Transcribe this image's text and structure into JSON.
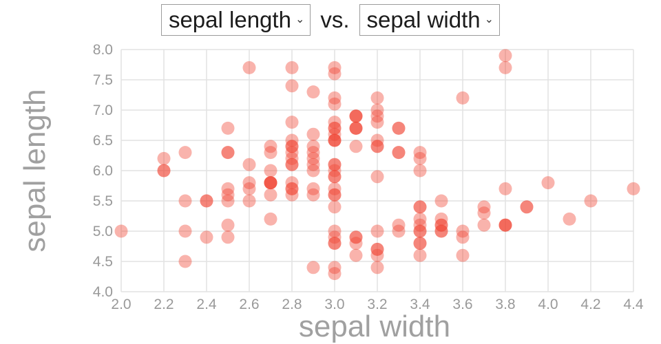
{
  "header": {
    "y_select": "sepal length",
    "x_select": "sepal width",
    "vs_label": "vs.",
    "chevron": "⌄"
  },
  "chart_data": {
    "type": "scatter",
    "title": "sepal length vs. sepal width",
    "xlabel": "sepal width",
    "ylabel": "sepal length",
    "xlim": [
      2.0,
      4.4
    ],
    "ylim": [
      4.0,
      8.0
    ],
    "x_ticks": [
      "2.0",
      "2.2",
      "2.4",
      "2.6",
      "2.8",
      "3.0",
      "3.2",
      "3.4",
      "3.6",
      "3.8",
      "4.0",
      "4.2",
      "4.4"
    ],
    "y_ticks": [
      "4.0",
      "4.5",
      "5.0",
      "5.5",
      "6.0",
      "6.5",
      "7.0",
      "7.5",
      "8.0"
    ],
    "grid": true,
    "legend": "none",
    "grid_color": "#e2e2e2",
    "tick_color": "#999999",
    "tick_font_size": 21,
    "marker_color": "#f0402f",
    "marker_opacity": 0.4,
    "marker_radius": 9.5,
    "points": [
      [
        3.5,
        5.1
      ],
      [
        3.0,
        4.9
      ],
      [
        3.2,
        4.7
      ],
      [
        3.1,
        4.6
      ],
      [
        3.6,
        5.0
      ],
      [
        3.9,
        5.4
      ],
      [
        3.4,
        4.6
      ],
      [
        3.4,
        5.0
      ],
      [
        2.9,
        4.4
      ],
      [
        3.1,
        4.9
      ],
      [
        3.7,
        5.4
      ],
      [
        3.4,
        4.8
      ],
      [
        3.0,
        4.8
      ],
      [
        3.0,
        4.3
      ],
      [
        4.0,
        5.8
      ],
      [
        4.4,
        5.7
      ],
      [
        3.9,
        5.4
      ],
      [
        3.5,
        5.1
      ],
      [
        3.8,
        5.7
      ],
      [
        3.8,
        5.1
      ],
      [
        3.4,
        5.4
      ],
      [
        3.7,
        5.1
      ],
      [
        3.6,
        4.6
      ],
      [
        3.3,
        5.1
      ],
      [
        3.4,
        4.8
      ],
      [
        3.0,
        5.0
      ],
      [
        3.4,
        5.0
      ],
      [
        3.5,
        5.2
      ],
      [
        3.4,
        5.2
      ],
      [
        3.2,
        4.7
      ],
      [
        3.1,
        4.8
      ],
      [
        3.4,
        5.4
      ],
      [
        4.1,
        5.2
      ],
      [
        4.2,
        5.5
      ],
      [
        3.1,
        4.9
      ],
      [
        3.2,
        5.0
      ],
      [
        3.5,
        5.5
      ],
      [
        3.6,
        4.9
      ],
      [
        3.0,
        4.4
      ],
      [
        3.4,
        5.1
      ],
      [
        3.5,
        5.0
      ],
      [
        2.3,
        4.5
      ],
      [
        3.2,
        4.4
      ],
      [
        3.5,
        5.0
      ],
      [
        3.8,
        5.1
      ],
      [
        3.0,
        4.8
      ],
      [
        3.8,
        5.1
      ],
      [
        3.2,
        4.6
      ],
      [
        3.7,
        5.3
      ],
      [
        3.3,
        5.0
      ],
      [
        3.2,
        7.0
      ],
      [
        3.2,
        6.4
      ],
      [
        3.1,
        6.9
      ],
      [
        2.3,
        5.5
      ],
      [
        2.8,
        6.5
      ],
      [
        2.8,
        5.7
      ],
      [
        3.3,
        6.3
      ],
      [
        2.4,
        4.9
      ],
      [
        2.9,
        6.6
      ],
      [
        2.7,
        5.2
      ],
      [
        2.0,
        5.0
      ],
      [
        3.0,
        5.9
      ],
      [
        2.2,
        6.0
      ],
      [
        2.9,
        6.1
      ],
      [
        2.9,
        5.6
      ],
      [
        3.1,
        6.7
      ],
      [
        3.0,
        5.6
      ],
      [
        2.7,
        5.8
      ],
      [
        2.2,
        6.2
      ],
      [
        2.5,
        5.6
      ],
      [
        3.2,
        5.9
      ],
      [
        2.8,
        6.1
      ],
      [
        2.5,
        6.3
      ],
      [
        2.8,
        6.1
      ],
      [
        2.9,
        6.4
      ],
      [
        3.0,
        6.6
      ],
      [
        2.8,
        6.8
      ],
      [
        3.0,
        6.7
      ],
      [
        2.9,
        6.0
      ],
      [
        2.6,
        5.7
      ],
      [
        2.4,
        5.5
      ],
      [
        2.4,
        5.5
      ],
      [
        2.7,
        5.8
      ],
      [
        2.7,
        6.0
      ],
      [
        3.0,
        5.4
      ],
      [
        3.4,
        6.0
      ],
      [
        3.1,
        6.7
      ],
      [
        2.3,
        6.3
      ],
      [
        3.0,
        5.6
      ],
      [
        2.5,
        5.5
      ],
      [
        2.6,
        5.5
      ],
      [
        3.0,
        6.1
      ],
      [
        2.6,
        5.8
      ],
      [
        2.3,
        5.0
      ],
      [
        2.7,
        5.6
      ],
      [
        3.0,
        5.7
      ],
      [
        2.9,
        5.7
      ],
      [
        2.9,
        6.2
      ],
      [
        2.5,
        5.1
      ],
      [
        2.8,
        5.7
      ],
      [
        3.3,
        6.3
      ],
      [
        2.7,
        5.8
      ],
      [
        3.0,
        7.1
      ],
      [
        2.9,
        6.3
      ],
      [
        3.0,
        6.5
      ],
      [
        3.0,
        7.6
      ],
      [
        2.5,
        4.9
      ],
      [
        2.9,
        7.3
      ],
      [
        2.5,
        6.7
      ],
      [
        3.6,
        7.2
      ],
      [
        3.2,
        6.5
      ],
      [
        2.7,
        6.4
      ],
      [
        3.0,
        6.8
      ],
      [
        2.5,
        5.7
      ],
      [
        2.8,
        5.8
      ],
      [
        3.2,
        6.4
      ],
      [
        3.0,
        6.5
      ],
      [
        3.8,
        7.7
      ],
      [
        2.6,
        7.7
      ],
      [
        2.2,
        6.0
      ],
      [
        3.2,
        6.9
      ],
      [
        2.8,
        5.6
      ],
      [
        2.8,
        7.7
      ],
      [
        2.7,
        6.3
      ],
      [
        3.3,
        6.7
      ],
      [
        3.2,
        7.2
      ],
      [
        2.8,
        6.2
      ],
      [
        3.0,
        6.1
      ],
      [
        2.8,
        6.4
      ],
      [
        3.0,
        7.2
      ],
      [
        2.8,
        7.4
      ],
      [
        3.8,
        7.9
      ],
      [
        2.8,
        6.4
      ],
      [
        2.8,
        6.3
      ],
      [
        2.6,
        6.1
      ],
      [
        3.0,
        7.7
      ],
      [
        3.4,
        6.3
      ],
      [
        3.1,
        6.4
      ],
      [
        3.0,
        6.0
      ],
      [
        3.1,
        6.9
      ],
      [
        3.1,
        6.7
      ],
      [
        3.1,
        6.9
      ],
      [
        2.7,
        5.8
      ],
      [
        3.2,
        6.8
      ],
      [
        3.3,
        6.7
      ],
      [
        3.0,
        6.7
      ],
      [
        2.5,
        6.3
      ],
      [
        3.0,
        6.5
      ],
      [
        3.4,
        6.2
      ],
      [
        3.0,
        5.9
      ]
    ]
  }
}
